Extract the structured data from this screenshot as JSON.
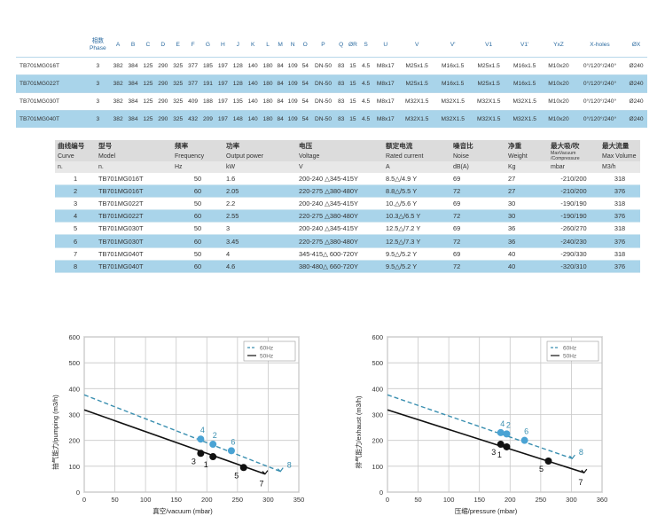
{
  "top_table": {
    "headers": [
      {
        "cn": "相数",
        "en": "Phase"
      },
      {
        "cn": "",
        "en": "A"
      },
      {
        "cn": "",
        "en": "B"
      },
      {
        "cn": "",
        "en": "C"
      },
      {
        "cn": "",
        "en": "D"
      },
      {
        "cn": "",
        "en": "E"
      },
      {
        "cn": "",
        "en": "F"
      },
      {
        "cn": "",
        "en": "G"
      },
      {
        "cn": "",
        "en": "H"
      },
      {
        "cn": "",
        "en": "J"
      },
      {
        "cn": "",
        "en": "K"
      },
      {
        "cn": "",
        "en": "L"
      },
      {
        "cn": "",
        "en": "M"
      },
      {
        "cn": "",
        "en": "N"
      },
      {
        "cn": "",
        "en": "O"
      },
      {
        "cn": "",
        "en": "P"
      },
      {
        "cn": "",
        "en": "Q"
      },
      {
        "cn": "",
        "en": "ØR"
      },
      {
        "cn": "",
        "en": "S"
      },
      {
        "cn": "",
        "en": "U"
      },
      {
        "cn": "",
        "en": "V"
      },
      {
        "cn": "",
        "en": "V'"
      },
      {
        "cn": "",
        "en": "V1"
      },
      {
        "cn": "",
        "en": "V1'"
      },
      {
        "cn": "",
        "en": "YxZ"
      },
      {
        "cn": "",
        "en": "X-holes"
      },
      {
        "cn": "",
        "en": "ØX"
      }
    ],
    "rows": [
      {
        "model": "TB701MG016T",
        "cells": [
          "3",
          "382",
          "384",
          "125",
          "290",
          "325",
          "377",
          "185",
          "197",
          "128",
          "140",
          "180",
          "84",
          "109",
          "54",
          "DN-50",
          "83",
          "15",
          "4.5",
          "M8x17",
          "M25x1.5",
          "M16x1.5",
          "M25x1.5",
          "M16x1.5",
          "M10x20",
          "0°/120°/240°",
          "Ø240"
        ]
      },
      {
        "model": "TB701MG022T",
        "cells": [
          "3",
          "382",
          "384",
          "125",
          "290",
          "325",
          "377",
          "191",
          "197",
          "128",
          "140",
          "180",
          "84",
          "109",
          "54",
          "DN-50",
          "83",
          "15",
          "4.5",
          "M8x17",
          "M25x1.5",
          "M16x1.5",
          "M25x1.5",
          "M16x1.5",
          "M10x20",
          "0°/120°/240°",
          "Ø240"
        ]
      },
      {
        "model": "TB701MG030T",
        "cells": [
          "3",
          "382",
          "384",
          "125",
          "290",
          "325",
          "409",
          "188",
          "197",
          "135",
          "140",
          "180",
          "84",
          "109",
          "54",
          "DN-50",
          "83",
          "15",
          "4.5",
          "M8x17",
          "M32X1.5",
          "M32X1.5",
          "M32X1.5",
          "M32X1.5",
          "M10x20",
          "0°/120°/240°",
          "Ø240"
        ]
      },
      {
        "model": "TB701MG040T",
        "cells": [
          "3",
          "382",
          "384",
          "125",
          "290",
          "325",
          "432",
          "209",
          "197",
          "148",
          "140",
          "180",
          "84",
          "109",
          "54",
          "DN-50",
          "83",
          "15",
          "4.5",
          "M8x17",
          "M32X1.5",
          "M32X1.5",
          "M32X1.5",
          "M32X1.5",
          "M10x20",
          "0°/120°/240°",
          "Ø240"
        ]
      }
    ]
  },
  "spec_table": {
    "header_cn": [
      "曲线编号",
      "型号",
      "频率",
      "功率",
      "电压",
      "额定电流",
      "噪音比",
      "净重",
      "最大吸/吹",
      "最大流量"
    ],
    "header_en": [
      "Curve",
      "Model",
      "Frequency",
      "Output power",
      "Voltage",
      "Rated current",
      "Noise",
      "Weight",
      "MaxVacuum /Compressure",
      "Max Volume"
    ],
    "header_unit": [
      "n.",
      "n.",
      "Hz",
      "kW",
      "V",
      "A",
      "dB(A)",
      "Kg",
      "mbar",
      "M3/h"
    ],
    "rows": [
      {
        "curve": "1",
        "model": "TB701MG016T",
        "freq": "50",
        "power": "1.6",
        "voltage": "200-240 △345-415Y",
        "current": "8.5△/4.9 Y",
        "noise": "69",
        "weight": "27",
        "max_vac": "-210/200",
        "max_vol": "318"
      },
      {
        "curve": "2",
        "model": "TB701MG016T",
        "freq": "60",
        "power": "2.05",
        "voltage": "220-275 △380-480Y",
        "current": "8.8△/5.5 Y",
        "noise": "72",
        "weight": "27",
        "max_vac": "-210/200",
        "max_vol": "376"
      },
      {
        "curve": "3",
        "model": "TB701MG022T",
        "freq": "50",
        "power": "2.2",
        "voltage": "200-240 △345-415Y",
        "current": "10.△/5.6 Y",
        "noise": "69",
        "weight": "30",
        "max_vac": "-190/190",
        "max_vol": "318"
      },
      {
        "curve": "4",
        "model": "TB701MG022T",
        "freq": "60",
        "power": "2.55",
        "voltage": "220-275 △380-480Y",
        "current": "10.3△/6.5 Y",
        "noise": "72",
        "weight": "30",
        "max_vac": "-190/190",
        "max_vol": "376"
      },
      {
        "curve": "5",
        "model": "TB701MG030T",
        "freq": "50",
        "power": "3",
        "voltage": "200-240 △345-415Y",
        "current": "12.5△/7.2 Y",
        "noise": "69",
        "weight": "36",
        "max_vac": "-260/270",
        "max_vol": "318"
      },
      {
        "curve": "6",
        "model": "TB701MG030T",
        "freq": "60",
        "power": "3.45",
        "voltage": "220-275 △380-480Y",
        "current": "12.5△/7.3 Y",
        "noise": "72",
        "weight": "36",
        "max_vac": "-240/230",
        "max_vol": "376"
      },
      {
        "curve": "7",
        "model": "TB701MG040T",
        "freq": "50",
        "power": "4",
        "voltage": "345-415△ 600-720Y",
        "current": "9.5△/5.2 Y",
        "noise": "69",
        "weight": "40",
        "max_vac": "-290/330",
        "max_vol": "318"
      },
      {
        "curve": "8",
        "model": "TB701MG040T",
        "freq": "60",
        "power": "4.6",
        "voltage": "380-480△ 660-720Y",
        "current": "9.5△/5.2 Y",
        "noise": "72",
        "weight": "40",
        "max_vac": "-320/310",
        "max_vol": "376"
      }
    ]
  },
  "chart_data": [
    {
      "type": "line",
      "xlabel": "真空/vacuum (mbar)",
      "ylabel": "抽气能力/pumping (m3/h)",
      "xlim": [
        0,
        350
      ],
      "ylim": [
        0,
        600
      ],
      "xticks": [
        "0",
        "50",
        "100",
        "150",
        "200",
        "250",
        "300",
        "350"
      ],
      "yticks": [
        "0",
        "100",
        "200",
        "300",
        "400",
        "500",
        "600"
      ],
      "grid": true,
      "legend": "top-right",
      "series": [
        {
          "name": "60Hz",
          "style": "dashed",
          "color": "#3a8fb0",
          "line": [
            [
              0,
              376
            ],
            [
              320,
              80
            ]
          ],
          "points": [
            {
              "label": "4",
              "x": 190,
              "y": 205
            },
            {
              "label": "2",
              "x": 210,
              "y": 185
            },
            {
              "label": "6",
              "x": 240,
              "y": 160
            },
            {
              "label": "8",
              "x": 320,
              "y": 80
            }
          ]
        },
        {
          "name": "50Hz",
          "style": "solid",
          "color": "#111111",
          "line": [
            [
              0,
              318
            ],
            [
              295,
              70
            ]
          ],
          "points": [
            {
              "label": "3",
              "x": 190,
              "y": 150
            },
            {
              "label": "1",
              "x": 210,
              "y": 137
            },
            {
              "label": "5",
              "x": 260,
              "y": 95
            },
            {
              "label": "7",
              "x": 295,
              "y": 70
            }
          ]
        }
      ]
    },
    {
      "type": "line",
      "xlabel": "压缩/pressure (mbar)",
      "ylabel": "排气能力/exhaust (m3/h)",
      "xlim": [
        0,
        360
      ],
      "ylim": [
        0,
        600
      ],
      "xticks": [
        "0",
        "50",
        "100",
        "150",
        "200",
        "250",
        "300",
        "360"
      ],
      "yticks": [
        "0",
        "100",
        "200",
        "300",
        "400",
        "500",
        "600"
      ],
      "grid": true,
      "legend": "top-right",
      "series": [
        {
          "name": "60Hz",
          "style": "dashed",
          "color": "#3a8fb0",
          "line": [
            [
              0,
              376
            ],
            [
              310,
              130
            ]
          ],
          "points": [
            {
              "label": "4",
              "x": 190,
              "y": 230
            },
            {
              "label": "2",
              "x": 200,
              "y": 225
            },
            {
              "label": "6",
              "x": 230,
              "y": 200
            },
            {
              "label": "8",
              "x": 310,
              "y": 130
            }
          ]
        },
        {
          "name": "50Hz",
          "style": "solid",
          "color": "#111111",
          "line": [
            [
              0,
              318
            ],
            [
              330,
              75
            ]
          ],
          "points": [
            {
              "label": "3",
              "x": 190,
              "y": 185
            },
            {
              "label": "1",
              "x": 200,
              "y": 175
            },
            {
              "label": "5",
              "x": 270,
              "y": 120
            },
            {
              "label": "7",
              "x": 330,
              "y": 75
            }
          ]
        }
      ]
    }
  ]
}
